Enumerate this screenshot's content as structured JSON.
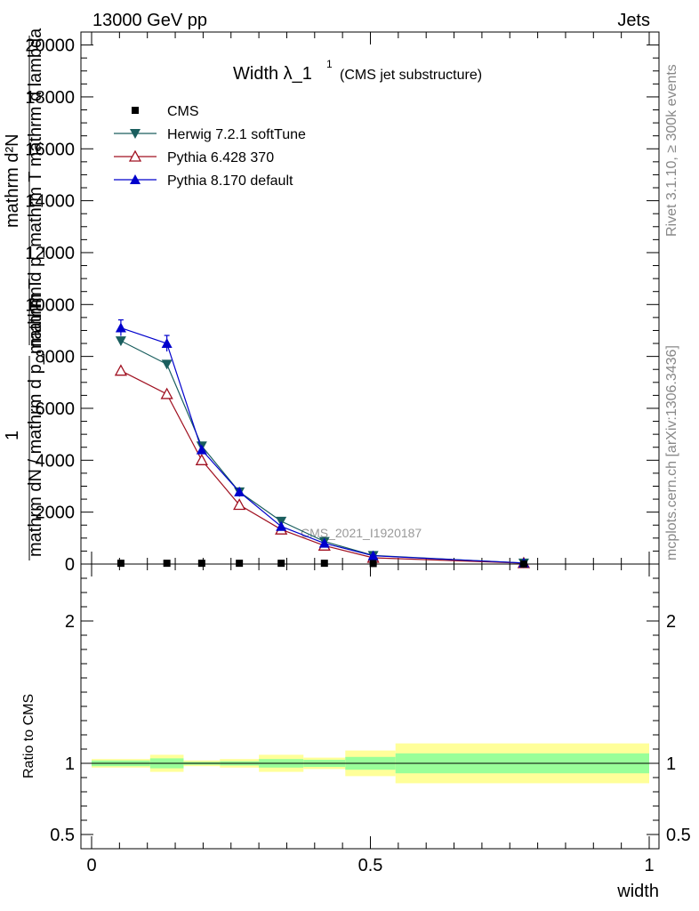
{
  "header": {
    "left": "13000 GeV pp",
    "right": "Jets"
  },
  "side_text": {
    "rivet": "Rivet 3.1.10, ≥ 300k events",
    "mcplots": "mcplots.cern.ch [arXiv:1306.3436]"
  },
  "chart_data": {
    "type": "line",
    "title": "Width λ_1",
    "title_sup": "1",
    "title_suffix": "(CMS jet substructure)",
    "watermark": "CMS_2021_I1920187",
    "ylabel_top": "mathrm d²N",
    "ylabel_bottom": "mathrm d p_mathrm T mathrm d lambda",
    "ylabel_frac_num": "1",
    "ylabel_frac_den": "mathrm dN / mathrm d p_mathrm T",
    "xlabel": "width",
    "xlim": [
      0,
      1
    ],
    "ylim": [
      0,
      20500
    ],
    "x_ticks": [
      "0",
      "0.5",
      "1"
    ],
    "y_ticks": [
      "0",
      "2000",
      "4000",
      "6000",
      "8000",
      "10000",
      "12000",
      "14000",
      "16000",
      "18000",
      "20000"
    ],
    "legend_position": "top-left",
    "x": [
      0.0525,
      0.135,
      0.1975,
      0.265,
      0.34,
      0.4175,
      0.505,
      0.775
    ],
    "series": [
      {
        "name": "CMS",
        "color": "#000000",
        "marker": "square",
        "values": [
          30,
          30,
          30,
          30,
          30,
          30,
          20,
          5
        ]
      },
      {
        "name": "Herwig 7.2.1 softTune",
        "color": "#1a5e5e",
        "marker": "triangle-down",
        "values": [
          8600,
          7700,
          4550,
          2780,
          1650,
          870,
          330,
          40
        ]
      },
      {
        "name": "Pythia 6.428 370",
        "color": "#a01020",
        "marker": "triangle-up-open",
        "values": [
          7450,
          6550,
          4000,
          2280,
          1330,
          710,
          240,
          35
        ]
      },
      {
        "name": "Pythia 8.170 default",
        "color": "#0000cc",
        "marker": "triangle-up",
        "values": [
          9100,
          8500,
          4400,
          2780,
          1450,
          800,
          320,
          40
        ]
      }
    ],
    "ratio": {
      "ylabel": "Ratio to CMS",
      "ylim": [
        0.4,
        2.4
      ],
      "ticks": [
        "0.5",
        "1",
        "2"
      ],
      "bins": [
        {
          "lo": 0.0,
          "hi": 0.105,
          "stat": 0.02,
          "tot": 0.03
        },
        {
          "lo": 0.105,
          "hi": 0.165,
          "stat": 0.035,
          "tot": 0.06
        },
        {
          "lo": 0.165,
          "hi": 0.23,
          "stat": 0.01,
          "tot": 0.02
        },
        {
          "lo": 0.23,
          "hi": 0.3,
          "stat": 0.015,
          "tot": 0.03
        },
        {
          "lo": 0.3,
          "hi": 0.38,
          "stat": 0.03,
          "tot": 0.06
        },
        {
          "lo": 0.38,
          "hi": 0.455,
          "stat": 0.025,
          "tot": 0.04
        },
        {
          "lo": 0.455,
          "hi": 0.545,
          "stat": 0.045,
          "tot": 0.09
        },
        {
          "lo": 0.545,
          "hi": 1.0,
          "stat": 0.07,
          "tot": 0.14
        }
      ]
    }
  }
}
